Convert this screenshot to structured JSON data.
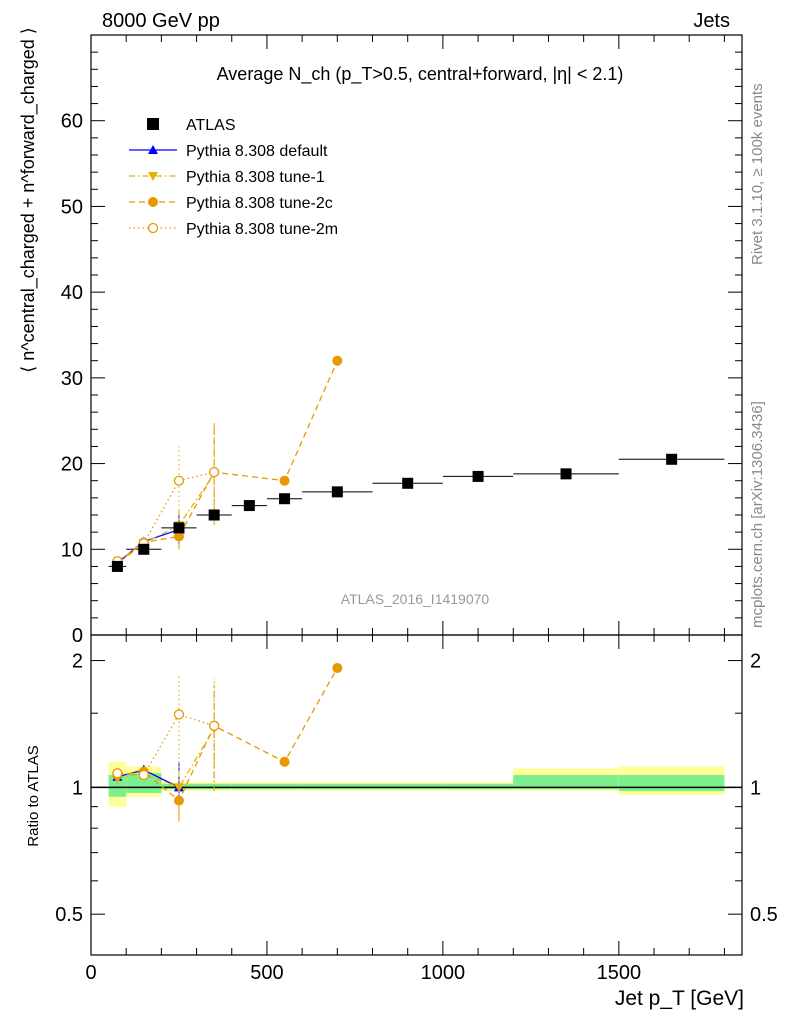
{
  "header": {
    "left": "8000 GeV pp",
    "right": "Jets",
    "side_rivet": "Rivet 3.1.10, ≥ 100k events",
    "side_mcplots": "mcplots.cern.ch [arXiv:1306.3436]",
    "watermark": "ATLAS_2016_I1419070"
  },
  "chart_data": [
    {
      "type": "scatter",
      "title": "Average N_ch (p_T>0.5, central+forward, |η| < 2.1)",
      "ylabel": "⟨ n^central_charged + n^forward_charged ⟩",
      "xlim": [
        0,
        1850
      ],
      "ylim": [
        0,
        70
      ],
      "yticks": [
        0,
        10,
        20,
        30,
        40,
        50,
        60
      ],
      "ytick_labels": [
        "0",
        "10",
        "20",
        "30",
        "40",
        "50",
        "60"
      ],
      "legend_position": "top-left",
      "legend": [
        {
          "label": "ATLAS"
        },
        {
          "label": "Pythia 8.308 default"
        },
        {
          "label": "Pythia 8.308 tune-1"
        },
        {
          "label": "Pythia 8.308 tune-2c"
        },
        {
          "label": "Pythia 8.308 tune-2m"
        }
      ],
      "series": [
        {
          "name": "ATLAS",
          "color": "#000000",
          "marker": "square",
          "x": [
            75,
            150,
            250,
            350,
            450,
            550,
            700,
            900,
            1100,
            1350,
            1650
          ],
          "y": [
            8.0,
            10.0,
            12.5,
            14.0,
            15.1,
            15.9,
            16.7,
            17.7,
            18.5,
            18.8,
            20.5
          ],
          "xerr": [
            25,
            50,
            50,
            50,
            50,
            50,
            100,
            100,
            100,
            150,
            150
          ]
        },
        {
          "name": "Pythia 8.308 default",
          "color": "#0000ff",
          "marker": "triangle-up",
          "line": "solid",
          "x": [
            75,
            150,
            250
          ],
          "y": [
            8.4,
            10.9,
            12.3
          ],
          "yerr": [
            0.3,
            0.4,
            2.0
          ]
        },
        {
          "name": "Pythia 8.308 tune-1",
          "color": "#e6b400",
          "marker": "triangle-down",
          "line": "dashdot",
          "x": [
            75,
            150,
            250,
            350
          ],
          "y": [
            8.3,
            10.7,
            12.8,
            18.8
          ],
          "yerr": [
            0.3,
            0.4,
            2.0,
            6.0
          ]
        },
        {
          "name": "Pythia 8.308 tune-2c",
          "color": "#e69a00",
          "marker": "circle",
          "line": "dashed",
          "x": [
            75,
            150,
            250,
            350,
            550,
            700
          ],
          "y": [
            8.5,
            10.8,
            11.5,
            19.0,
            18.0,
            32.0
          ],
          "yerr": [
            0.3,
            0.4,
            1.5,
            5.0,
            0,
            0
          ]
        },
        {
          "name": "Pythia 8.308 tune-2m",
          "color": "#e69a00",
          "marker": "circle-open",
          "line": "dotted",
          "x": [
            75,
            150,
            250,
            350
          ],
          "y": [
            8.6,
            10.7,
            18.0,
            19.0
          ],
          "yerr": [
            0.3,
            0.4,
            4.0,
            6.0
          ]
        }
      ]
    },
    {
      "type": "scatter",
      "ylabel": "Ratio to ATLAS",
      "xlabel": "Jet p_T [GeV]",
      "xlim": [
        0,
        1850
      ],
      "ylim": [
        0.4,
        2.3
      ],
      "xticks": [
        0,
        500,
        1000,
        1500
      ],
      "xtick_labels": [
        "0",
        "500",
        "1000",
        "1500"
      ],
      "yticks": [
        0.5,
        1,
        2
      ],
      "ytick_labels": [
        "0.5",
        "1",
        "2"
      ],
      "bands": [
        {
          "x": [
            50,
            100
          ],
          "yellow": [
            0.9,
            1.15
          ],
          "green": [
            0.95,
            1.07
          ]
        },
        {
          "x": [
            100,
            200
          ],
          "yellow": [
            0.95,
            1.12
          ],
          "green": [
            0.97,
            1.08
          ]
        },
        {
          "x": [
            200,
            300
          ],
          "yellow": [
            0.98,
            1.03
          ],
          "green": [
            0.99,
            1.02
          ]
        },
        {
          "x": [
            300,
            400
          ],
          "yellow": [
            0.98,
            1.03
          ],
          "green": [
            0.99,
            1.02
          ]
        },
        {
          "x": [
            400,
            500
          ],
          "yellow": [
            0.98,
            1.03
          ],
          "green": [
            0.99,
            1.02
          ]
        },
        {
          "x": [
            500,
            600
          ],
          "yellow": [
            0.98,
            1.03
          ],
          "green": [
            0.99,
            1.02
          ]
        },
        {
          "x": [
            600,
            800
          ],
          "yellow": [
            0.98,
            1.03
          ],
          "green": [
            0.99,
            1.02
          ]
        },
        {
          "x": [
            800,
            1000
          ],
          "yellow": [
            0.98,
            1.03
          ],
          "green": [
            0.99,
            1.02
          ]
        },
        {
          "x": [
            1000,
            1200
          ],
          "yellow": [
            0.98,
            1.03
          ],
          "green": [
            0.99,
            1.02
          ]
        },
        {
          "x": [
            1200,
            1500
          ],
          "yellow": [
            0.98,
            1.11
          ],
          "green": [
            0.99,
            1.07
          ]
        },
        {
          "x": [
            1500,
            1800
          ],
          "yellow": [
            0.96,
            1.12
          ],
          "green": [
            0.98,
            1.07
          ]
        }
      ],
      "series": [
        {
          "name": "Pythia 8.308 default",
          "color": "#0000ff",
          "marker": "triangle-up",
          "line": "solid",
          "x": [
            75,
            150,
            250
          ],
          "y": [
            1.06,
            1.1,
            1.0
          ],
          "yerr": [
            0.03,
            0.03,
            0.15
          ]
        },
        {
          "name": "Pythia 8.308 tune-1",
          "color": "#e6b400",
          "marker": "triangle-down",
          "line": "dashdot",
          "x": [
            75,
            150,
            250,
            350
          ],
          "y": [
            1.05,
            1.08,
            1.0,
            1.38
          ],
          "yerr": [
            0.03,
            0.03,
            0.15,
            0.4
          ]
        },
        {
          "name": "Pythia 8.308 tune-2c",
          "color": "#e69a00",
          "marker": "circle",
          "line": "dashed",
          "x": [
            75,
            150,
            250,
            350,
            550,
            700
          ],
          "y": [
            1.07,
            1.09,
            0.93,
            1.4,
            1.15,
            1.92
          ],
          "yerr": [
            0.03,
            0.03,
            0.1,
            0.35,
            0,
            0
          ]
        },
        {
          "name": "Pythia 8.308 tune-2m",
          "color": "#e69a00",
          "marker": "circle-open",
          "line": "dotted",
          "x": [
            75,
            150,
            250,
            350
          ],
          "y": [
            1.08,
            1.07,
            1.49,
            1.4
          ],
          "yerr": [
            0.03,
            0.03,
            0.35,
            0.42
          ]
        }
      ]
    }
  ]
}
